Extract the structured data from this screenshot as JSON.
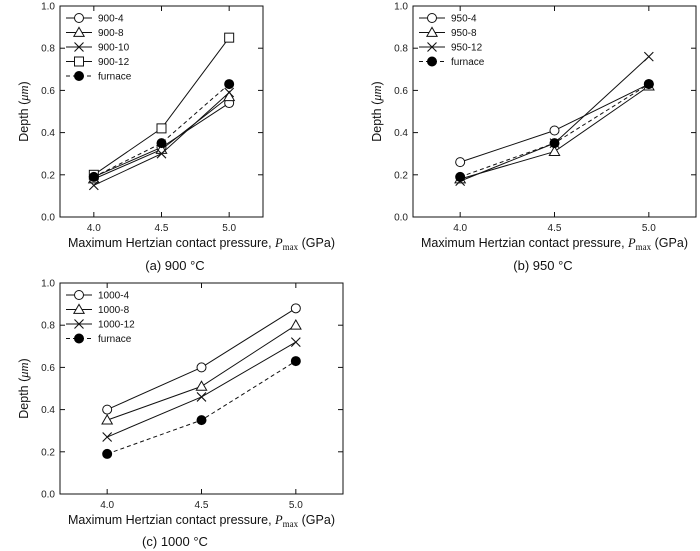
{
  "chart_data": [
    {
      "type": "line",
      "panel": "a",
      "caption": "(a)  900 °C",
      "x": [
        4.0,
        4.5,
        5.0
      ],
      "x_ticks": [
        "4.0",
        "4.5",
        "5.0"
      ],
      "xlim": [
        3.75,
        5.25
      ],
      "ylim": [
        0.0,
        1.0
      ],
      "y_ticks": [
        "0.0",
        "0.2",
        "0.4",
        "0.6",
        "0.8",
        "1.0"
      ],
      "ylabel_main": "Depth (",
      "ylabel_unit": "μm",
      "ylabel_end": ")",
      "xlabel_main": "Maximum Hertzian contact pressure, ",
      "xlabel_sym": "P",
      "xlabel_sub": "max",
      "xlabel_end": " (GPa)",
      "legend_position": "top-left",
      "series": [
        {
          "name": "900-4",
          "marker": "circle",
          "dashed": false,
          "values": [
            0.19,
            0.33,
            0.54
          ]
        },
        {
          "name": "900-8",
          "marker": "triangle",
          "dashed": false,
          "values": [
            0.18,
            0.32,
            0.57
          ]
        },
        {
          "name": "900-10",
          "marker": "x",
          "dashed": false,
          "values": [
            0.15,
            0.3,
            0.59
          ]
        },
        {
          "name": "900-12",
          "marker": "square",
          "dashed": false,
          "values": [
            0.2,
            0.42,
            0.85
          ]
        },
        {
          "name": "furnace",
          "marker": "dot",
          "dashed": true,
          "values": [
            0.19,
            0.35,
            0.63
          ]
        }
      ]
    },
    {
      "type": "line",
      "panel": "b",
      "caption": "(b)  950 °C",
      "x": [
        4.0,
        4.5,
        5.0
      ],
      "x_ticks": [
        "4.0",
        "4.5",
        "5.0"
      ],
      "xlim": [
        3.75,
        5.25
      ],
      "ylim": [
        0.0,
        1.0
      ],
      "y_ticks": [
        "0.0",
        "0.2",
        "0.4",
        "0.6",
        "0.8",
        "1.0"
      ],
      "ylabel_main": "Depth (",
      "ylabel_unit": "μm",
      "ylabel_end": ")",
      "xlabel_main": "Maximum Hertzian contact pressure, ",
      "xlabel_sym": "P",
      "xlabel_sub": "max",
      "xlabel_end": " (GPa)",
      "legend_position": "top-left",
      "series": [
        {
          "name": "950-4",
          "marker": "circle",
          "dashed": false,
          "values": [
            0.26,
            0.41,
            0.63
          ]
        },
        {
          "name": "950-8",
          "marker": "triangle",
          "dashed": false,
          "values": [
            0.18,
            0.31,
            0.62
          ]
        },
        {
          "name": "950-12",
          "marker": "x",
          "dashed": false,
          "values": [
            0.17,
            0.35,
            0.76
          ]
        },
        {
          "name": "furnace",
          "marker": "dot",
          "dashed": true,
          "values": [
            0.19,
            0.35,
            0.63
          ]
        }
      ]
    },
    {
      "type": "line",
      "panel": "c",
      "caption": "(c)  1000 °C",
      "x": [
        4.0,
        4.5,
        5.0
      ],
      "x_ticks": [
        "4.0",
        "4.5",
        "5.0"
      ],
      "xlim": [
        3.75,
        5.25
      ],
      "ylim": [
        0.0,
        1.0
      ],
      "y_ticks": [
        "0.0",
        "0.2",
        "0.4",
        "0.6",
        "0.8",
        "1.0"
      ],
      "ylabel_main": "Depth (",
      "ylabel_unit": "μm",
      "ylabel_end": ")",
      "xlabel_main": "Maximum Hertzian contact pressure, ",
      "xlabel_sym": "P",
      "xlabel_sub": "max",
      "xlabel_end": " (GPa)",
      "legend_position": "top-left",
      "series": [
        {
          "name": "1000-4",
          "marker": "circle",
          "dashed": false,
          "values": [
            0.4,
            0.6,
            0.88
          ]
        },
        {
          "name": "1000-8",
          "marker": "triangle",
          "dashed": false,
          "values": [
            0.35,
            0.51,
            0.8
          ]
        },
        {
          "name": "1000-12",
          "marker": "x",
          "dashed": false,
          "values": [
            0.27,
            0.46,
            0.72
          ]
        },
        {
          "name": "furnace",
          "marker": "dot",
          "dashed": true,
          "values": [
            0.19,
            0.35,
            0.63
          ]
        }
      ]
    }
  ]
}
